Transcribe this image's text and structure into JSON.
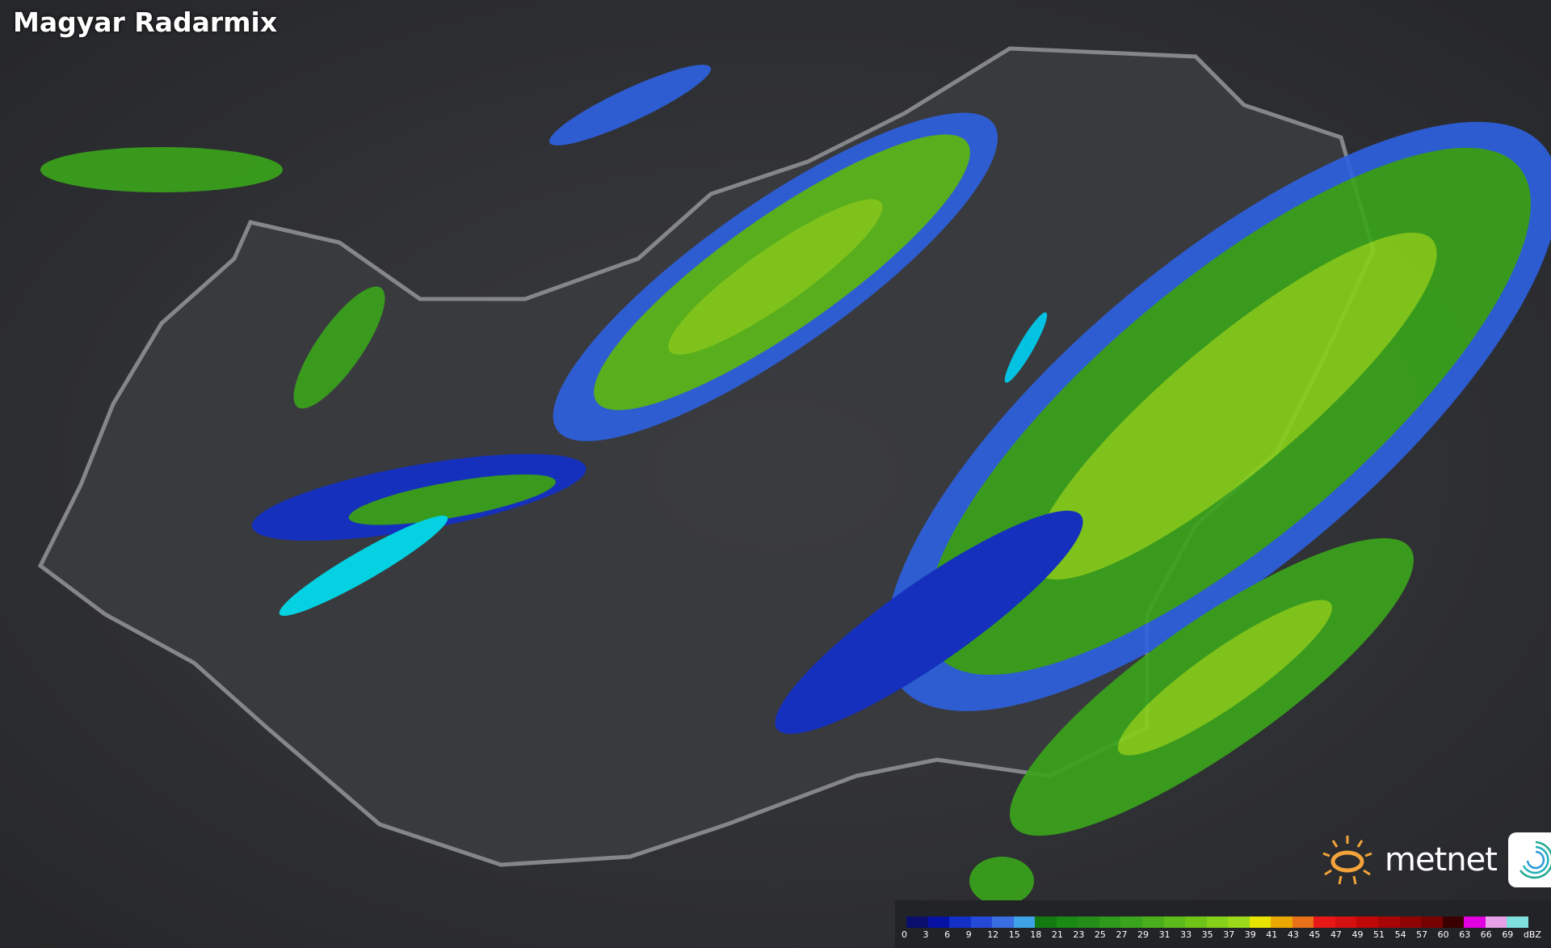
{
  "title": "Magyar Radarmix",
  "logo": {
    "text": "metnet",
    "sun_color": "#f3a33a",
    "icon": "metnet-swirl-icon"
  },
  "legend": {
    "unit": "dBZ",
    "labels": [
      "0",
      "3",
      "6",
      "9",
      "12",
      "15",
      "18",
      "21",
      "23",
      "25",
      "27",
      "29",
      "31",
      "33",
      "35",
      "37",
      "39",
      "41",
      "43",
      "45",
      "47",
      "49",
      "51",
      "54",
      "57",
      "60",
      "63",
      "66",
      "69"
    ],
    "colors": [
      "#0a0f6e",
      "#0612a4",
      "#1230c8",
      "#2449d8",
      "#3a6ee0",
      "#3ea3e6",
      "#137a12",
      "#1a8a14",
      "#248e18",
      "#2e9a1c",
      "#3aa41c",
      "#4aae1c",
      "#5cba1a",
      "#70c418",
      "#86d01a",
      "#9ada1a",
      "#e6e400",
      "#e8a800",
      "#e87018",
      "#e81818",
      "#d41010",
      "#c00808",
      "#a80606",
      "#900404",
      "#780202",
      "#3a0000",
      "#e000e0",
      "#e8a0e8",
      "#80e0e0"
    ]
  }
}
